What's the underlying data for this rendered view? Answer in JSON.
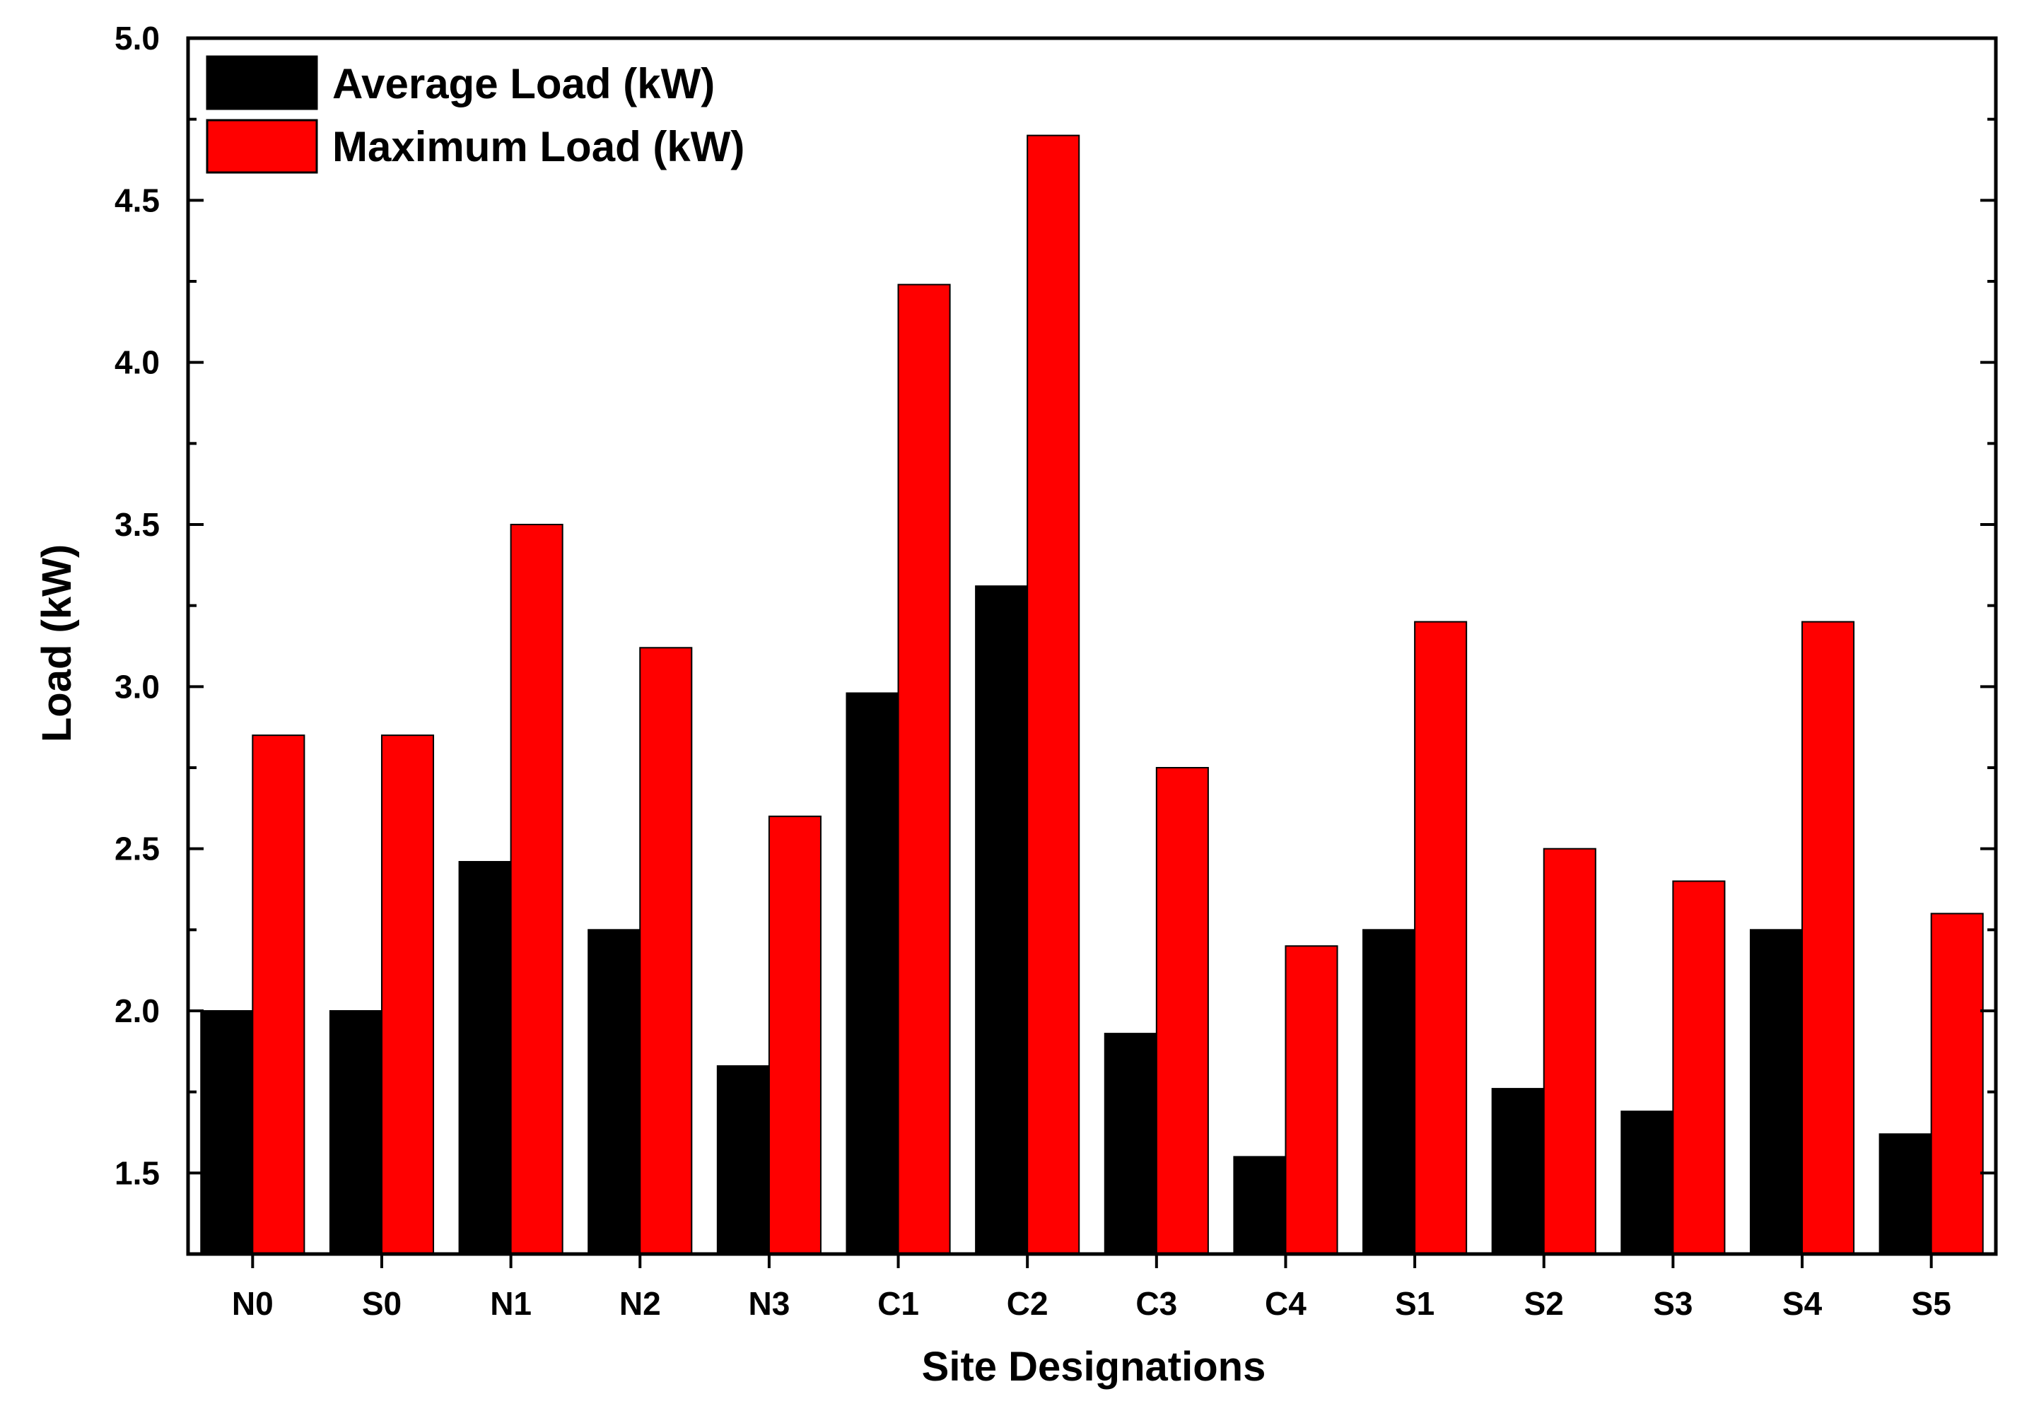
{
  "chart_data": {
    "type": "bar",
    "title": "",
    "xlabel": "Site Designations",
    "ylabel": "Load (kW)",
    "ylim": [
      1.25,
      5.0
    ],
    "yticks": [
      1.5,
      2.0,
      2.5,
      3.0,
      3.5,
      4.0,
      4.5,
      5.0
    ],
    "ytick_labels": [
      "1.5",
      "2.0",
      "2.5",
      "3.0",
      "3.5",
      "4.0",
      "4.5",
      "5.0"
    ],
    "categories": [
      "N0",
      "S0",
      "N1",
      "N2",
      "N3",
      "C1",
      "C2",
      "C3",
      "C4",
      "S1",
      "S2",
      "S3",
      "S4",
      "S5"
    ],
    "series": [
      {
        "name": "Average Load (kW)",
        "color": "#000000",
        "values": [
          2.0,
          2.0,
          2.46,
          2.25,
          1.83,
          2.98,
          3.31,
          1.93,
          1.55,
          2.25,
          1.76,
          1.69,
          2.25,
          1.62
        ]
      },
      {
        "name": "Maximum Load (kW)",
        "color": "#ff0000",
        "values": [
          2.85,
          2.85,
          3.5,
          3.12,
          2.6,
          4.24,
          4.7,
          2.75,
          2.2,
          3.2,
          2.5,
          2.4,
          3.2,
          2.3
        ]
      }
    ],
    "legend_position": "top-left",
    "grid": false
  }
}
